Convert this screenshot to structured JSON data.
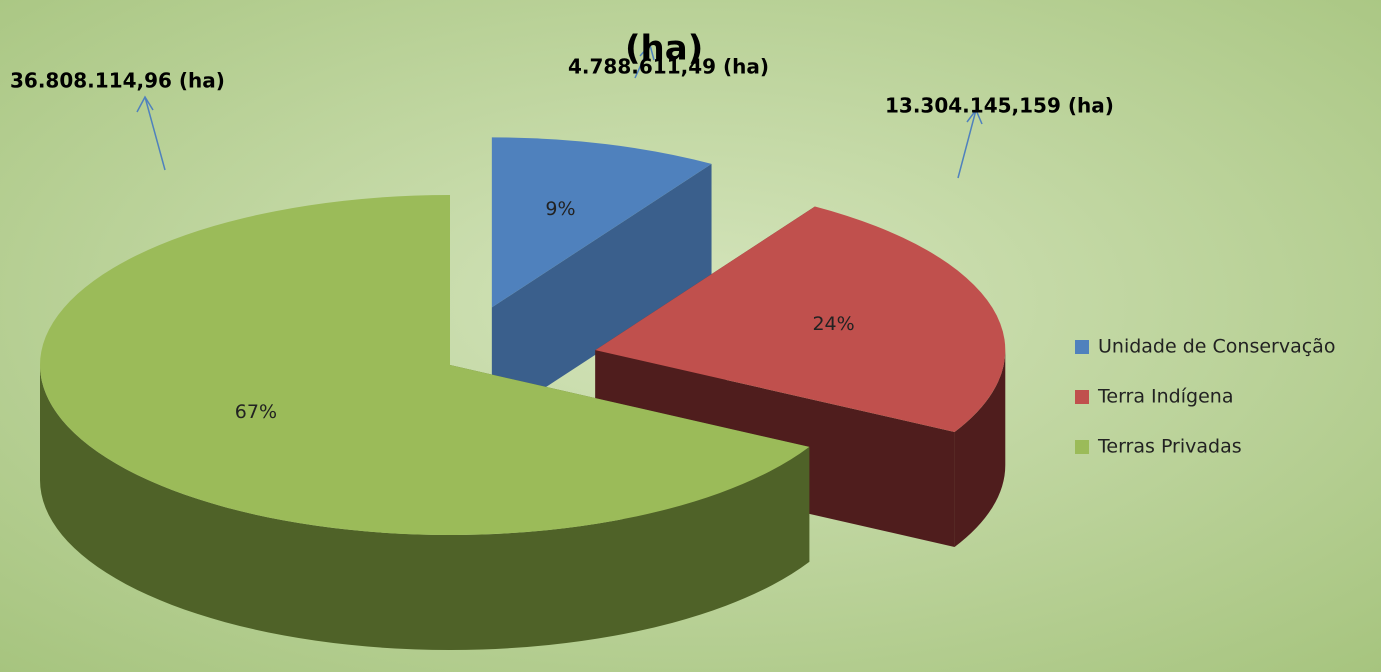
{
  "chart_data": {
    "type": "pie3d",
    "categories": [
      "Unidade de Conservação",
      "Terra Indígena",
      "Terras Privadas"
    ],
    "values": [
      9,
      24,
      67
    ],
    "value_labels": [
      "9%",
      "24%",
      "67%"
    ],
    "colors": [
      "#4f81bd",
      "#c0504d",
      "#9bbb59"
    ],
    "side_colors": [
      "#3a5f8c",
      "#4f1d1d",
      "#4f6228"
    ],
    "exploded": [
      true,
      true,
      false
    ],
    "legend": "right",
    "annotations": [
      "4.788.611,49  (ha)",
      "(ha)",
      "13.304.145,159  (ha)",
      "36.808.114,96  (ha)"
    ]
  }
}
